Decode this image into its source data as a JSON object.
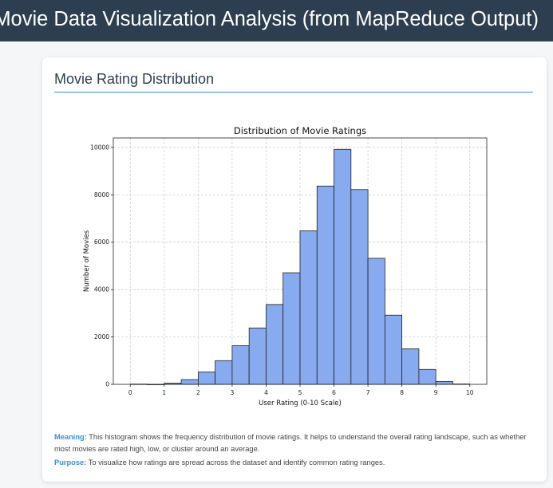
{
  "header": {
    "title": "Movie Data Visualization Analysis (from MapReduce Output)"
  },
  "section": {
    "title": "Movie Rating Distribution"
  },
  "chart_data": {
    "type": "bar",
    "title": "Distribution of Movie Ratings",
    "xlabel": "User Rating (0-10 Scale)",
    "ylabel": "Number of Movies",
    "xlim": [
      -0.5,
      10.5
    ],
    "ylim": [
      0,
      10400
    ],
    "xticks": [
      0,
      1,
      2,
      3,
      4,
      5,
      6,
      7,
      8,
      9,
      10
    ],
    "yticks": [
      0,
      2000,
      4000,
      6000,
      8000,
      10000
    ],
    "grid": true,
    "bar_color": "#88abef",
    "bins": [
      {
        "x0": 0.0,
        "x1": 0.5,
        "value": 10
      },
      {
        "x0": 0.5,
        "x1": 1.0,
        "value": 0
      },
      {
        "x0": 1.0,
        "x1": 1.5,
        "value": 50
      },
      {
        "x0": 1.5,
        "x1": 2.0,
        "value": 200
      },
      {
        "x0": 2.0,
        "x1": 2.5,
        "value": 520
      },
      {
        "x0": 2.5,
        "x1": 3.0,
        "value": 1000
      },
      {
        "x0": 3.0,
        "x1": 3.5,
        "value": 1630
      },
      {
        "x0": 3.5,
        "x1": 4.0,
        "value": 2380
      },
      {
        "x0": 4.0,
        "x1": 4.5,
        "value": 3370
      },
      {
        "x0": 4.5,
        "x1": 5.0,
        "value": 4710
      },
      {
        "x0": 5.0,
        "x1": 5.5,
        "value": 6480
      },
      {
        "x0": 5.5,
        "x1": 6.0,
        "value": 8370
      },
      {
        "x0": 6.0,
        "x1": 6.5,
        "value": 9920
      },
      {
        "x0": 6.5,
        "x1": 7.0,
        "value": 8220
      },
      {
        "x0": 7.0,
        "x1": 7.5,
        "value": 5320
      },
      {
        "x0": 7.5,
        "x1": 8.0,
        "value": 2920
      },
      {
        "x0": 8.0,
        "x1": 8.5,
        "value": 1500
      },
      {
        "x0": 8.5,
        "x1": 9.0,
        "value": 630
      },
      {
        "x0": 9.0,
        "x1": 9.5,
        "value": 120
      },
      {
        "x0": 9.5,
        "x1": 10.0,
        "value": 15
      }
    ]
  },
  "meaning": {
    "label": "Meaning:",
    "text": "This histogram shows the frequency distribution of movie ratings. It helps to understand the overall rating landscape, such as whether most movies are rated high, low, or cluster around an average."
  },
  "purpose": {
    "label": "Purpose:",
    "text": "To visualize how ratings are spread across the dataset and identify common rating ranges."
  }
}
